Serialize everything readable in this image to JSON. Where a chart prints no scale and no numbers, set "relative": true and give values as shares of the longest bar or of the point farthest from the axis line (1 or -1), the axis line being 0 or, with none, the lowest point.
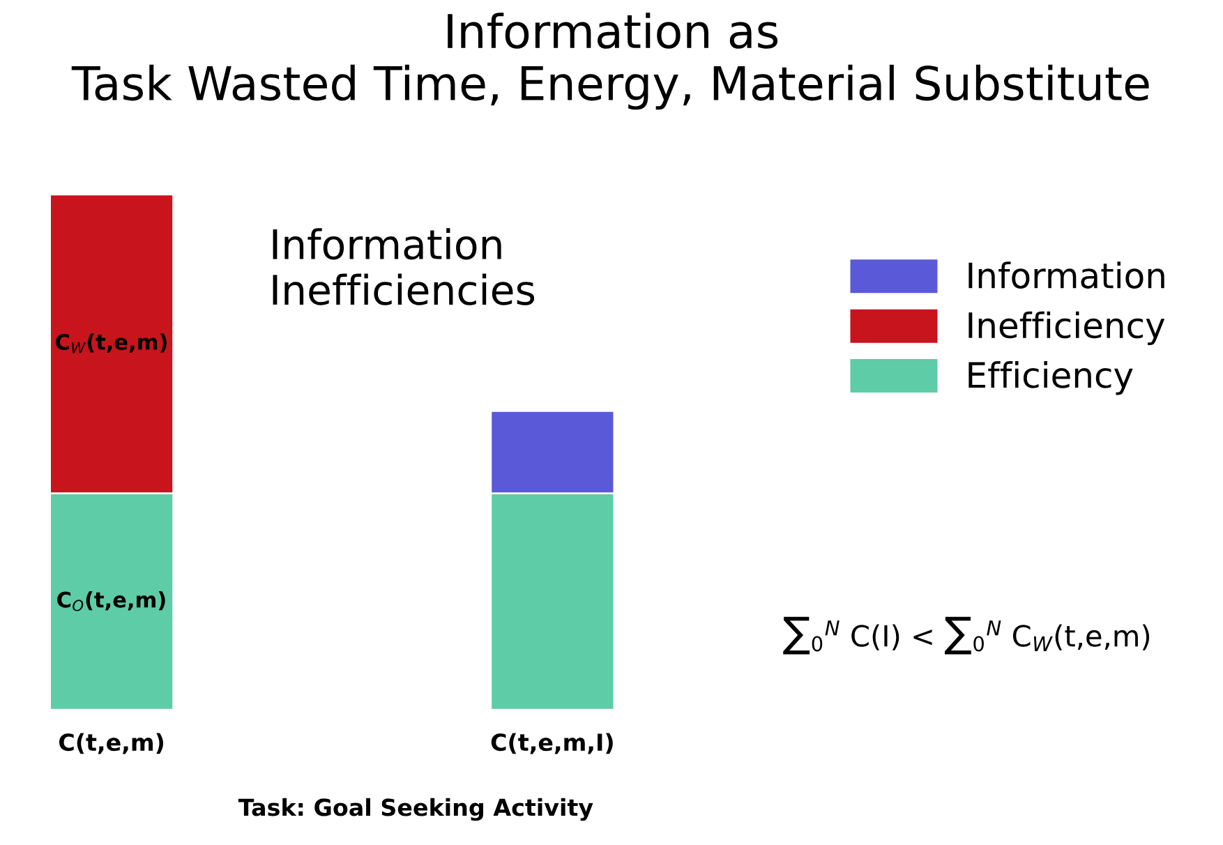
{
  "chart_data": {
    "type": "bar",
    "title": "Information as\nTask Wasted Time, Energy, Material Substitute",
    "xlabel": "Task: Goal Seeking Activity",
    "categories": [
      "C(t,e,m)",
      "C(t,e,m,I)"
    ],
    "stacked": true,
    "relative": true,
    "legend": "top right",
    "series": [
      {
        "name": "Efficiency",
        "color": "#5ecca6",
        "values": [
          0.42,
          0.42
        ]
      },
      {
        "name": "Inefficiency",
        "color": "#c8141c",
        "values": [
          0.58,
          null
        ]
      },
      {
        "name": "Information",
        "color": "#5a5ad8",
        "values": [
          null,
          0.16
        ]
      }
    ],
    "annotations": [
      "Information\nInefficiencies",
      "∑$_{0}$$^{N}$ C(I) < ∑$_{0}$$^{N}$ C$_{W}$(t,e,m)",
      "C$_{W}$(t,e,m)",
      "C$_{O}$(t,e,m)"
    ]
  }
}
